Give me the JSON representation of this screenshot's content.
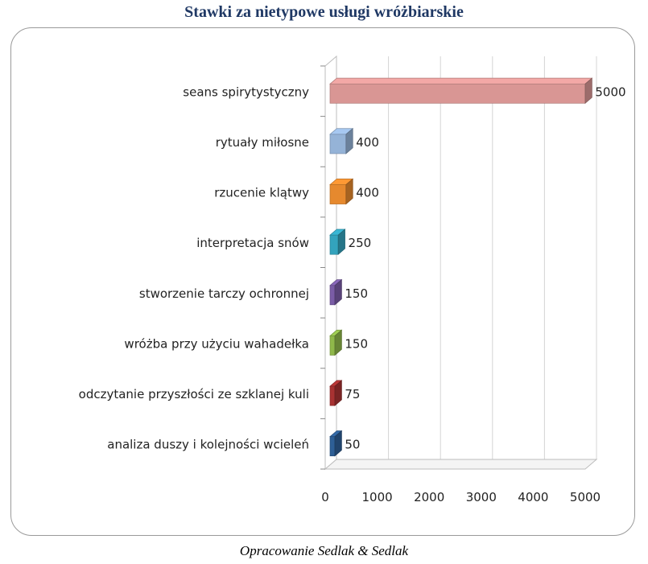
{
  "chart_data": {
    "type": "bar",
    "orientation": "horizontal",
    "style": "3d",
    "title": "Stawki za nietypowe usługi wróżbiarskie",
    "xlabel": "",
    "ylabel": "",
    "categories": [
      "seans spirytystyczny",
      "rytuały miłosne",
      "rzucenie klątwy",
      "interpretacja snów",
      "stworzenie tarczy ochronnej",
      "wróżba przy użyciu wahadełka",
      "odczytanie przyszłości ze szklanej kuli",
      "analiza duszy i kolejności wcieleń"
    ],
    "values": [
      5000,
      400,
      400,
      250,
      150,
      150,
      75,
      50
    ],
    "colors": [
      "#d99694",
      "#95b3d7",
      "#e6892e",
      "#33a3bd",
      "#7a5ca6",
      "#8fb84a",
      "#a83232",
      "#2e5f96"
    ],
    "xlim": [
      0,
      5000
    ],
    "xticks": [
      0,
      1000,
      2000,
      3000,
      4000,
      5000
    ],
    "grid": true,
    "legend": "none"
  },
  "source_note": "Opracowanie Sedlak & Sedlak"
}
